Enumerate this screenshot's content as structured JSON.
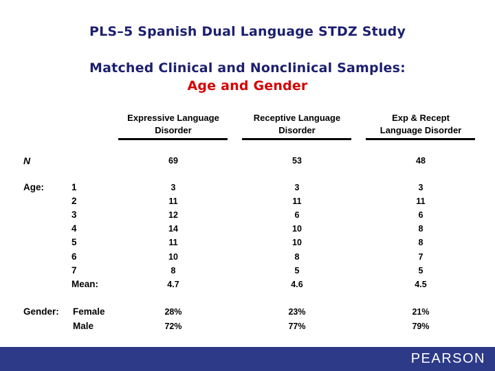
{
  "header": {
    "title": "PLS–5 Spanish Dual Language STDZ Study",
    "subtitle": "Matched Clinical and Nonclinical Samples:",
    "subtitle_accent": "Age and Gender",
    "title_color": "#1c1f6e",
    "accent_color": "#d60000"
  },
  "table": {
    "columns": [
      {
        "line1": "Expressive Language",
        "line2": "Disorder"
      },
      {
        "line1": "Receptive Language",
        "line2": "Disorder"
      },
      {
        "line1": "Exp & Recept",
        "line2": "Language Disorder"
      }
    ],
    "n_label": "N",
    "n_values": [
      "69",
      "53",
      "48"
    ],
    "age_label": "Age:",
    "age_rows": [
      {
        "label": "1",
        "values": [
          "3",
          "3",
          "3"
        ]
      },
      {
        "label": "2",
        "values": [
          "11",
          "11",
          "11"
        ]
      },
      {
        "label": "3",
        "values": [
          "12",
          "6",
          "6"
        ]
      },
      {
        "label": "4",
        "values": [
          "14",
          "10",
          "8"
        ]
      },
      {
        "label": "5",
        "values": [
          "11",
          "10",
          "8"
        ]
      },
      {
        "label": "6",
        "values": [
          "10",
          "8",
          "7"
        ]
      },
      {
        "label": "7",
        "values": [
          "8",
          "5",
          "5"
        ]
      },
      {
        "label": "Mean:",
        "values": [
          "4.7",
          "4.6",
          "4.5"
        ]
      }
    ],
    "gender_label": "Gender:",
    "gender_rows": [
      {
        "label": "Female",
        "values": [
          "28%",
          "23%",
          "21%"
        ]
      },
      {
        "label": "Male",
        "values": [
          "72%",
          "77%",
          "79%"
        ]
      }
    ]
  },
  "footer": {
    "brand": "PEARSON",
    "bar_color": "#2d3a87"
  }
}
